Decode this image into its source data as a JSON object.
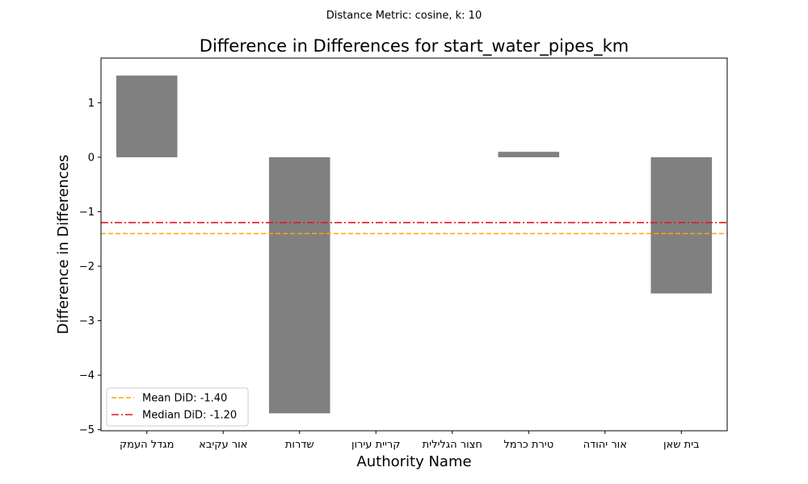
{
  "figure": {
    "suptitle": "Distance Metric: cosine, k: 10"
  },
  "chart_data": {
    "type": "bar",
    "title": "Difference in Differences for start_water_pipes_km",
    "xlabel": "Authority Name",
    "ylabel": "Difference in Differences",
    "categories": [
      "מגדל העמק",
      "אור עקיבא",
      "שדרות",
      "קריית עירון",
      "חצור הגלילית",
      "טירת כרמל",
      "אור יהודה",
      "בית שאן"
    ],
    "values": [
      1.5,
      0,
      -4.7,
      0,
      0,
      0.1,
      0,
      -2.5
    ],
    "ylim": [
      -5.02,
      1.82
    ],
    "yticks": [
      1,
      0,
      -1,
      -2,
      -3,
      -4,
      -5
    ],
    "ytick_labels": [
      "1",
      "0",
      "−1",
      "−2",
      "−3",
      "−4",
      "−5"
    ],
    "bar_color": "#808080",
    "grid": false,
    "legend_position": "lower-left",
    "reference_lines": [
      {
        "name": "Mean DiD: -1.40",
        "value": -1.4,
        "color": "#FFA500",
        "style": "dashed"
      },
      {
        "name": "Median DiD: -1.20",
        "value": -1.2,
        "color": "#E41A1C",
        "style": "dashdot"
      }
    ]
  }
}
